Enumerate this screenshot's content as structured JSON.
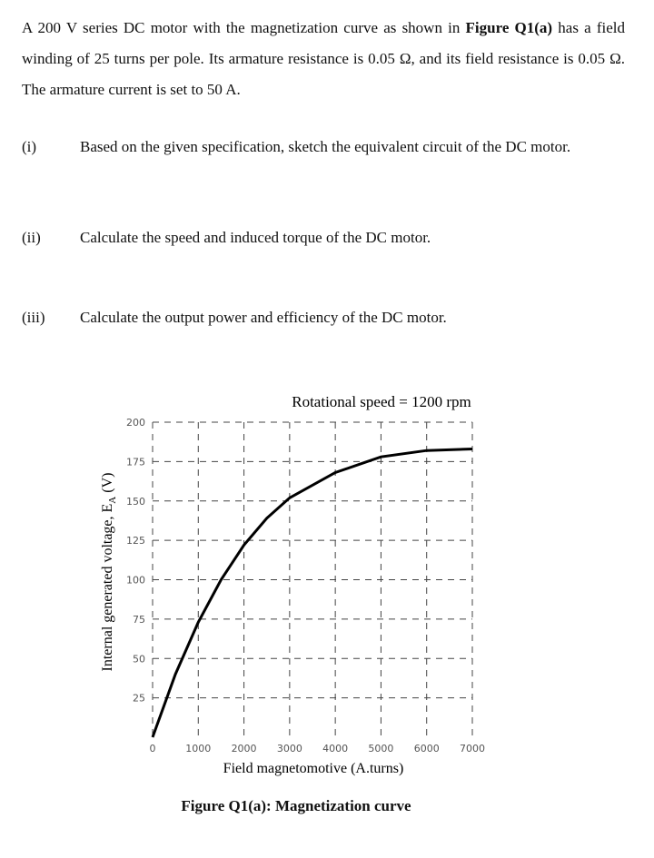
{
  "problem": {
    "parts": [
      "A 200 V series DC motor with the magnetization curve as shown in ",
      "Figure Q1(a)",
      " has a field winding of 25 turns per pole. Its armature resistance is 0.05 Ω, and its field resistance is 0.05 Ω. The armature current is set to 50 A."
    ]
  },
  "questions": [
    {
      "label": "(i)",
      "text": "Based on the given specification, sketch the equivalent circuit of the DC motor."
    },
    {
      "label": "(ii)",
      "text": "Calculate the speed and induced torque of the DC motor."
    },
    {
      "label": "(iii)",
      "text": "Calculate the output power and efficiency of the DC motor."
    }
  ],
  "chart_data": {
    "type": "line",
    "title": "Rotational speed = 1200 rpm",
    "xlabel": "Field magnetomotive (A.turns)",
    "ylabel": {
      "text": "Internal generated voltage, E",
      "subscript": "A",
      "unit": " (V)"
    },
    "x": [
      0,
      500,
      1000,
      1500,
      2000,
      2500,
      3000,
      4000,
      5000,
      6000,
      7000
    ],
    "values": [
      0,
      40,
      73,
      100,
      122,
      139,
      152,
      168,
      178,
      182,
      183
    ],
    "color": "#000000",
    "xlim": [
      0,
      7000
    ],
    "xticks": [
      0,
      1000,
      2000,
      3000,
      4000,
      5000,
      6000,
      7000
    ],
    "ylim": [
      0,
      200
    ],
    "yticks": [
      25,
      50,
      75,
      100,
      125,
      150,
      175,
      200
    ],
    "grid": true
  },
  "caption": "Figure Q1(a): Magnetization curve"
}
